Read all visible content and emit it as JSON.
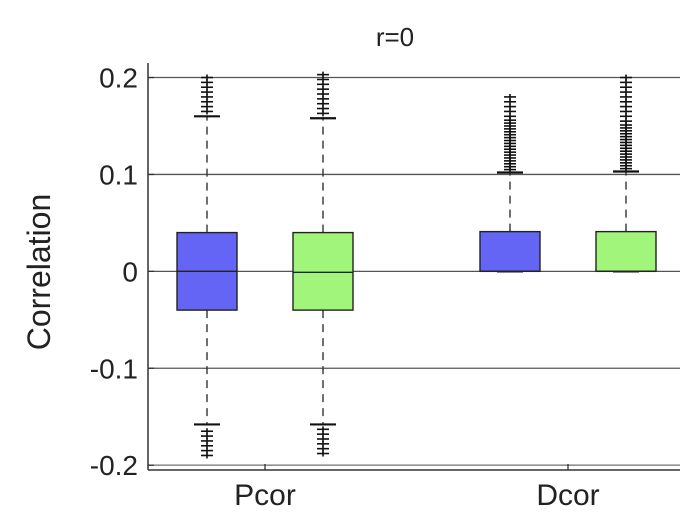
{
  "chart_data": {
    "type": "box",
    "title": "r=0",
    "xlabel": "",
    "ylabel": "Correlation",
    "ylim": [
      -0.205,
      0.215
    ],
    "yticks": [
      -0.2,
      -0.1,
      0,
      0.1,
      0.2
    ],
    "ytick_labels": [
      "-0.2",
      "-0.1",
      "0",
      "0.1",
      "0.2"
    ],
    "grid": "horizontal",
    "legend": "none",
    "categories": [
      "Pcor",
      "Dcor"
    ],
    "series_colors": [
      "#6464f5",
      "#a0f57a"
    ],
    "boxes": [
      {
        "category": "Pcor",
        "color": "#6464f5",
        "q1": -0.04,
        "median": 0.0,
        "q3": 0.04,
        "whisker_low": -0.158,
        "whisker_high": 0.16,
        "outliers_low": [
          -0.165,
          -0.17,
          -0.175,
          -0.18,
          -0.185,
          -0.19
        ],
        "outliers_high": [
          0.165,
          0.17,
          0.175,
          0.18,
          0.185,
          0.19,
          0.195,
          0.2
        ]
      },
      {
        "category": "Pcor",
        "color": "#a0f57a",
        "q1": -0.04,
        "median": -0.001,
        "q3": 0.04,
        "whisker_low": -0.158,
        "whisker_high": 0.158,
        "outliers_low": [
          -0.163,
          -0.168,
          -0.173,
          -0.178,
          -0.183,
          -0.188
        ],
        "outliers_high": [
          0.163,
          0.168,
          0.173,
          0.178,
          0.183,
          0.188,
          0.193,
          0.198,
          0.203
        ]
      },
      {
        "category": "Dcor",
        "color": "#6464f5",
        "q1": 0.0,
        "median": 0.0,
        "q3": 0.041,
        "whisker_low": 0.0,
        "whisker_high": 0.102,
        "outliers_low": [],
        "outliers_high": [
          0.105,
          0.108,
          0.111,
          0.114,
          0.117,
          0.12,
          0.123,
          0.126,
          0.129,
          0.132,
          0.135,
          0.138,
          0.141,
          0.144,
          0.147,
          0.15,
          0.153,
          0.156,
          0.16,
          0.165,
          0.17,
          0.175,
          0.18
        ]
      },
      {
        "category": "Dcor",
        "color": "#a0f57a",
        "q1": 0.0,
        "median": 0.0,
        "q3": 0.041,
        "whisker_low": 0.0,
        "whisker_high": 0.103,
        "outliers_low": [],
        "outliers_high": [
          0.106,
          0.109,
          0.112,
          0.115,
          0.118,
          0.121,
          0.124,
          0.127,
          0.13,
          0.133,
          0.136,
          0.139,
          0.142,
          0.145,
          0.148,
          0.151,
          0.155,
          0.16,
          0.165,
          0.17,
          0.175,
          0.18,
          0.185,
          0.19,
          0.195,
          0.2
        ]
      }
    ]
  }
}
